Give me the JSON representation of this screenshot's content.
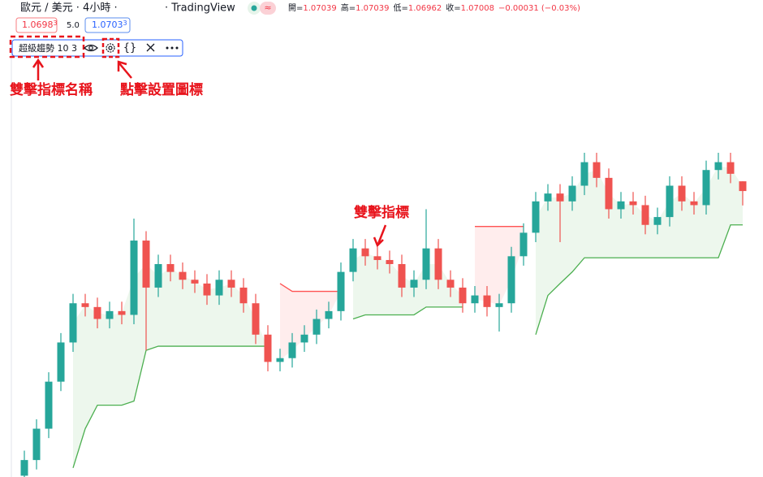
{
  "header": {
    "symbol": "歐元 / 美元 · 4小時 ·",
    "source": "· TradingView",
    "ohlc": [
      {
        "label": "開=",
        "value": "1.07039"
      },
      {
        "label": "高=",
        "value": "1.07039"
      },
      {
        "label": "低=",
        "value": "1.06962"
      },
      {
        "label": "收=",
        "value": "1.07008"
      }
    ],
    "change": "−0.00031 (−0.03%)"
  },
  "order_bar": {
    "sell": {
      "main": "1.0698",
      "pip": "3"
    },
    "spread": "5.0",
    "buy": {
      "main": "1.0703",
      "pip": "3"
    }
  },
  "indicator_legend": {
    "name": "超級趨勢 10 3"
  },
  "annotations": {
    "name_hint": "雙擊指標名稱",
    "settings_hint": "點擊設置圖標",
    "indicator_hint": "雙擊指標"
  },
  "chart": {
    "open": [
      1.061,
      1.0615,
      1.0625,
      1.064,
      1.06525,
      1.0665,
      1.06638,
      1.066,
      1.06625,
      1.06613,
      1.0685,
      1.067,
      1.06775,
      1.0675,
      1.06725,
      1.06713,
      1.06675,
      1.06725,
      1.067,
      1.0665,
      1.0655,
      1.06463,
      1.06475,
      1.06525,
      1.0655,
      1.066,
      1.06625,
      1.0675,
      1.06825,
      1.068,
      1.06788,
      1.06775,
      1.067,
      1.06725,
      1.06825,
      1.06725,
      1.067,
      1.0665,
      1.06675,
      1.06638,
      1.0665,
      1.068,
      1.06875,
      1.06975,
      1.07,
      1.06975,
      1.07025,
      1.071,
      1.0705,
      1.0695,
      1.06975,
      1.06963,
      1.069,
      1.06925,
      1.07025,
      1.06975,
      1.06963,
      1.07075,
      1.071,
      1.07039
    ],
    "high": [
      1.0618,
      1.0628,
      1.0643,
      1.06555,
      1.0668,
      1.0668,
      1.06668,
      1.06655,
      1.06655,
      1.0692,
      1.0688,
      1.06805,
      1.06805,
      1.0678,
      1.06755,
      1.06743,
      1.06755,
      1.06755,
      1.0673,
      1.0668,
      1.0658,
      1.06505,
      1.06555,
      1.0658,
      1.0663,
      1.06655,
      1.0678,
      1.06855,
      1.06855,
      1.0683,
      1.06818,
      1.06805,
      1.06755,
      1.0695,
      1.06855,
      1.06755,
      1.0673,
      1.06705,
      1.06705,
      1.0668,
      1.0683,
      1.06905,
      1.07005,
      1.0703,
      1.0703,
      1.07055,
      1.0713,
      1.0713,
      1.0708,
      1.07005,
      1.07005,
      1.06993,
      1.06955,
      1.07055,
      1.07055,
      1.07005,
      1.07105,
      1.0713,
      1.0713,
      1.07039
    ],
    "low": [
      1.0607,
      1.0612,
      1.0622,
      1.0637,
      1.06495,
      1.06608,
      1.0657,
      1.0657,
      1.06583,
      1.06583,
      1.065,
      1.0667,
      1.0672,
      1.06695,
      1.06683,
      1.06645,
      1.06645,
      1.0667,
      1.0662,
      1.0652,
      1.06433,
      1.06433,
      1.06445,
      1.06495,
      1.0652,
      1.0657,
      1.06595,
      1.0672,
      1.0677,
      1.06758,
      1.06745,
      1.0667,
      1.0667,
      1.06695,
      1.06695,
      1.0667,
      1.0662,
      1.0662,
      1.06608,
      1.0656,
      1.0662,
      1.0677,
      1.06845,
      1.06945,
      1.06845,
      1.06945,
      1.06995,
      1.0702,
      1.0692,
      1.0692,
      1.06933,
      1.0687,
      1.0687,
      1.06895,
      1.06945,
      1.06933,
      1.06933,
      1.07045,
      1.07033,
      1.06962
    ],
    "close": [
      1.0615,
      1.0625,
      1.064,
      1.06525,
      1.0665,
      1.06638,
      1.066,
      1.06625,
      1.06613,
      1.0685,
      1.067,
      1.06775,
      1.0675,
      1.06725,
      1.06713,
      1.06675,
      1.06725,
      1.067,
      1.0665,
      1.0655,
      1.06463,
      1.06475,
      1.06525,
      1.0655,
      1.066,
      1.06625,
      1.0675,
      1.06825,
      1.068,
      1.06788,
      1.06775,
      1.067,
      1.06725,
      1.06825,
      1.06725,
      1.067,
      1.0665,
      1.06675,
      1.06638,
      1.0665,
      1.068,
      1.06875,
      1.06975,
      1.07,
      1.06975,
      1.07025,
      1.071,
      1.0705,
      1.0695,
      1.06975,
      1.06963,
      1.069,
      1.06925,
      1.07025,
      1.06975,
      1.06963,
      1.07075,
      1.071,
      1.07063,
      1.07008
    ],
    "supertrend_up": [
      null,
      null,
      null,
      null,
      1.06125,
      1.0625,
      1.06325,
      1.06325,
      1.06325,
      1.06338,
      1.065,
      1.06513,
      1.06513,
      1.06513,
      1.06513,
      1.06513,
      1.06513,
      1.06513,
      1.06513,
      1.06513,
      1.06513,
      null,
      null,
      null,
      null,
      null,
      null,
      1.066,
      1.06613,
      1.06613,
      1.06613,
      1.06613,
      1.06613,
      1.06638,
      1.06638,
      1.06638,
      1.06638,
      null,
      null,
      null,
      null,
      null,
      1.0655,
      1.06675,
      1.06713,
      1.0675,
      1.06795,
      1.06795,
      1.06795,
      1.06795,
      1.06795,
      1.06795,
      1.06795,
      1.06795,
      1.06795,
      1.06795,
      1.06795,
      1.06795,
      1.069,
      1.069
    ],
    "supertrend_down": [
      null,
      null,
      null,
      null,
      null,
      null,
      null,
      null,
      null,
      null,
      null,
      null,
      null,
      null,
      null,
      null,
      null,
      null,
      null,
      null,
      null,
      1.06713,
      1.06688,
      1.06688,
      1.06688,
      1.06688,
      1.06688,
      null,
      null,
      null,
      null,
      null,
      null,
      null,
      null,
      null,
      null,
      1.06895,
      1.06895,
      1.06895,
      1.06895,
      1.06895,
      null,
      null,
      null,
      null,
      null,
      null,
      null,
      null,
      null,
      null,
      null,
      null,
      null,
      null,
      null,
      null,
      null,
      null
    ],
    "up_color": "#26a69a",
    "down_color": "#ef5350",
    "trend_up_color": "#4caf50",
    "trend_down_color": "#ff5252"
  }
}
